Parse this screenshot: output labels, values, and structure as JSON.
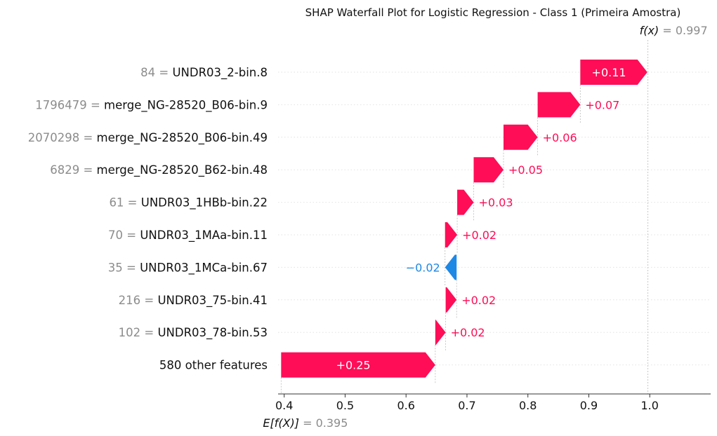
{
  "chart_data": {
    "type": "waterfall",
    "title": "SHAP Waterfall Plot for Logistic Regression - Class 1 (Primeira Amostra)",
    "fx": {
      "label": "f(x)",
      "equals": "= 0.997",
      "value": 0.997
    },
    "efx": {
      "label": "E[f(X)]",
      "equals": "= 0.395",
      "value": 0.395
    },
    "xlim": [
      0.39,
      1.1
    ],
    "xticks": [
      {
        "value": 0.4,
        "label": "0.4"
      },
      {
        "value": 0.5,
        "label": "0.5"
      },
      {
        "value": 0.6,
        "label": "0.6"
      },
      {
        "value": 0.7,
        "label": "0.7"
      },
      {
        "value": 0.8,
        "label": "0.8"
      },
      {
        "value": 0.9,
        "label": "0.9"
      },
      {
        "value": 1.0,
        "label": "1.0"
      }
    ],
    "colors": {
      "positive": "#ff0d57",
      "negative": "#1e88e5"
    },
    "features": [
      {
        "value_text": "84 =",
        "name": "UNDR03_2-bin.8",
        "shap": 0.11,
        "label": "+0.11"
      },
      {
        "value_text": "1796479 =",
        "name": "merge_NG-28520_B06-bin.9",
        "shap": 0.07,
        "label": "+0.07"
      },
      {
        "value_text": "2070298 =",
        "name": "merge_NG-28520_B06-bin.49",
        "shap": 0.056,
        "label": "+0.06"
      },
      {
        "value_text": "6829 =",
        "name": "merge_NG-28520_B62-bin.48",
        "shap": 0.049,
        "label": "+0.05"
      },
      {
        "value_text": "61 =",
        "name": "UNDR03_1HBb-bin.22",
        "shap": 0.027,
        "label": "+0.03"
      },
      {
        "value_text": "70 =",
        "name": "UNDR03_1MAa-bin.11",
        "shap": 0.02,
        "label": "+0.02"
      },
      {
        "value_text": "35 =",
        "name": "UNDR03_1MCa-bin.67",
        "shap": -0.019,
        "label": "−0.02"
      },
      {
        "value_text": "216 =",
        "name": "UNDR03_75-bin.41",
        "shap": 0.018,
        "label": "+0.02"
      },
      {
        "value_text": "102 =",
        "name": "UNDR03_78-bin.53",
        "shap": 0.017,
        "label": "+0.02"
      },
      {
        "value_text": "",
        "name": "580 other features",
        "shap": 0.253,
        "label": "+0.25"
      }
    ]
  }
}
